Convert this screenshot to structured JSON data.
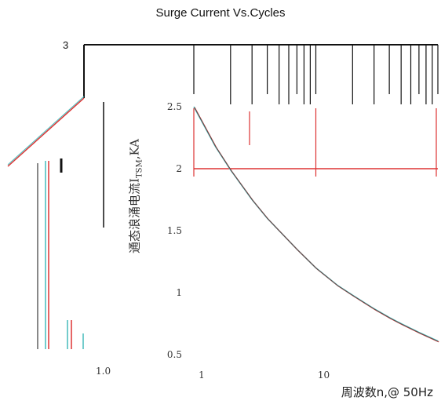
{
  "chart_data": {
    "type": "line",
    "title": "Surge Current Vs.Cycles",
    "xlabel": "周波数n,@ 50Hz",
    "ylabel_main": "通态浪涌电流I",
    "ylabel_sub": "TSM",
    "ylabel_unit": ",KA",
    "x_scale": "log",
    "xlim": [
      1,
      100
    ],
    "ylim": [
      0.5,
      2.5
    ],
    "y_ticks": [
      "2.5",
      "2",
      "1.5",
      "1",
      "0.5"
    ],
    "x_ticks": [
      "1",
      "10"
    ],
    "offset_tick_labels": {
      "top": "3",
      "left": "1.0"
    },
    "series": [
      {
        "x": [
          1,
          1.5,
          2,
          3,
          4,
          5,
          7,
          10,
          15,
          20,
          30,
          40,
          50,
          70,
          100
        ],
        "y": [
          2.5,
          2.18,
          1.99,
          1.75,
          1.6,
          1.5,
          1.35,
          1.2,
          1.06,
          0.98,
          0.87,
          0.8,
          0.75,
          0.68,
          0.61
        ]
      }
    ],
    "reference_line": {
      "y": 2,
      "x_from": 1,
      "x_to": 100
    },
    "grid": true
  }
}
